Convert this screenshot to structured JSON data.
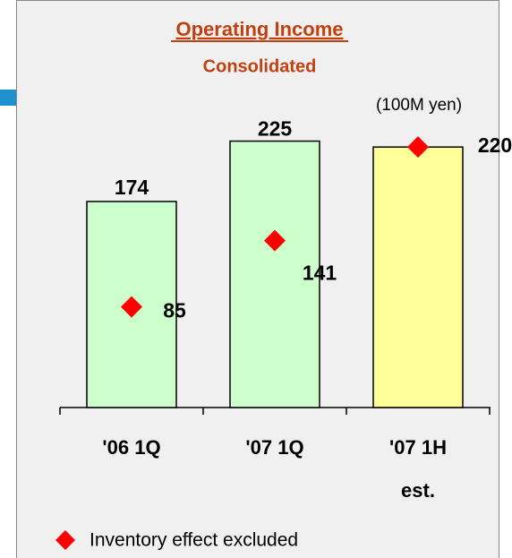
{
  "chart_data": {
    "type": "bar",
    "title": "Operating Income",
    "subtitle": "Consolidated",
    "unit_label": "(100M yen)",
    "categories": [
      "'06 1Q",
      "'07 1Q",
      "'07 1H est."
    ],
    "values": [
      174,
      225,
      220
    ],
    "colors": [
      "#ccffcc",
      "#ccffcc",
      "#ffff99"
    ],
    "markers": {
      "name": "Inventory  effect excluded",
      "color": "#ff0000",
      "values": [
        85,
        141,
        220
      ]
    },
    "ylim": [
      0,
      250
    ]
  }
}
